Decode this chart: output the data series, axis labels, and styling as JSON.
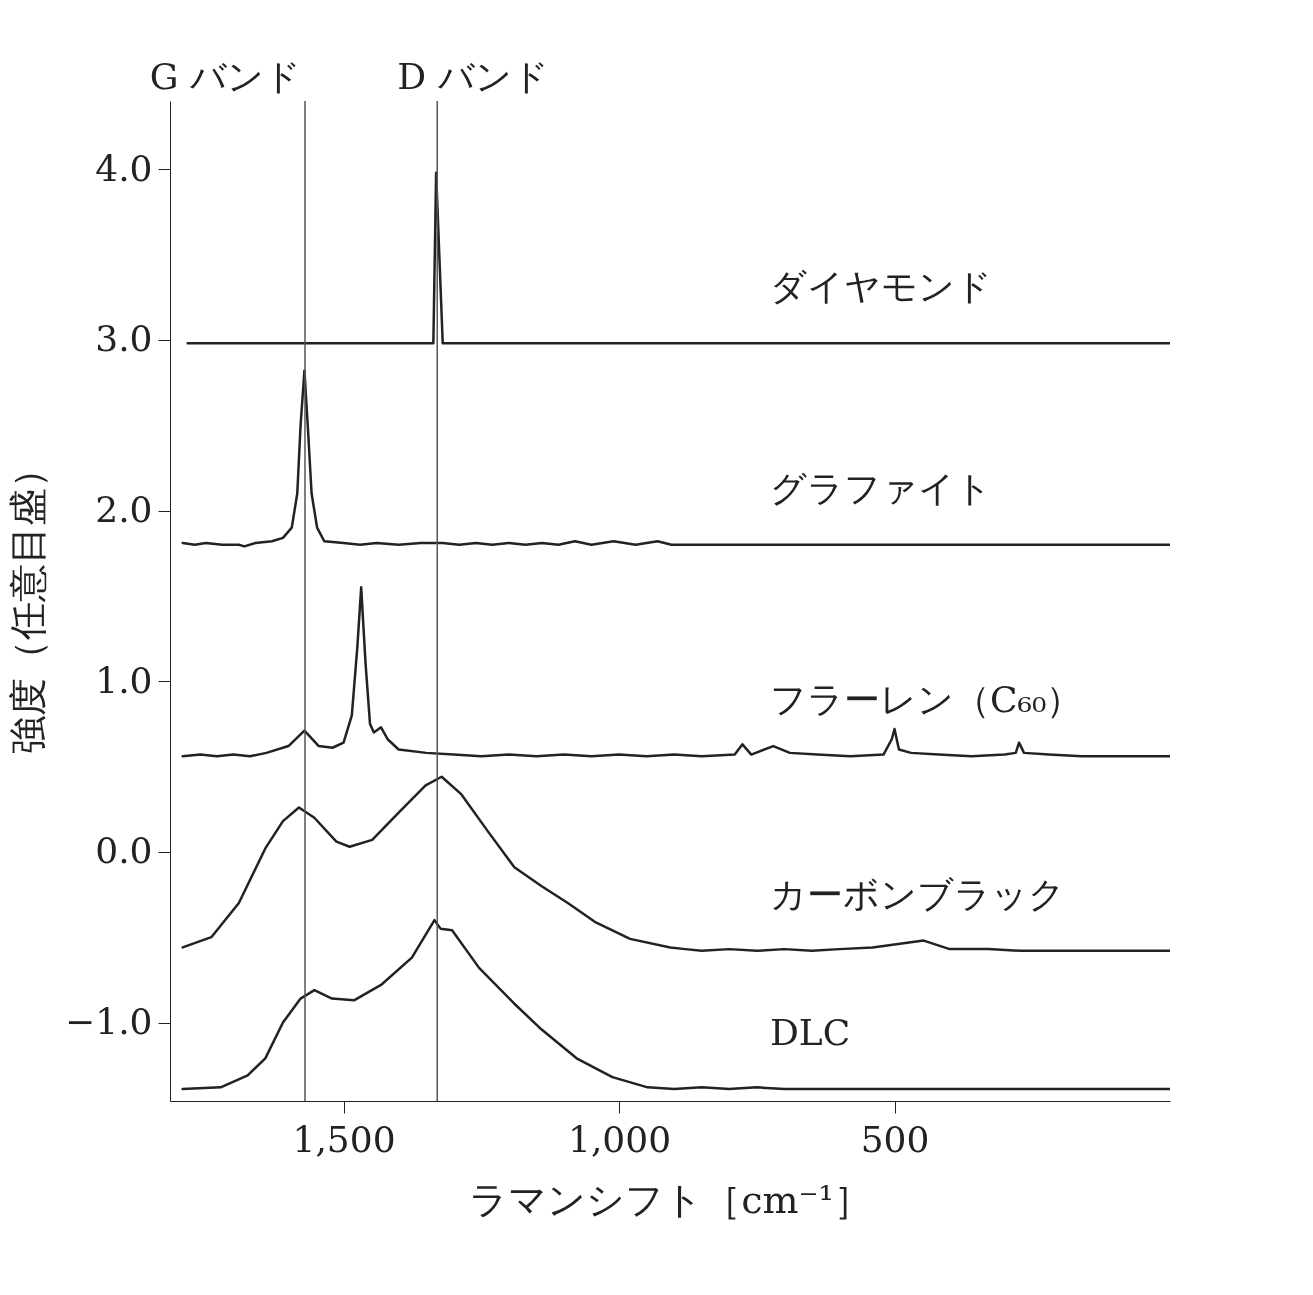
{
  "chart_data": {
    "type": "line",
    "xlabel": "ラマンシフト［cm⁻¹］",
    "ylabel": "強度（任意目盛）",
    "xlim": [
      1815,
      0
    ],
    "xticks": [
      {
        "value": 1500,
        "label": "1,500"
      },
      {
        "value": 1000,
        "label": "1,000"
      },
      500
    ],
    "ylim": [
      -1.46,
      4.4
    ],
    "yticks": [
      {
        "value": -1,
        "label": "−1.0"
      },
      {
        "value": 0,
        "label": "0.0"
      },
      {
        "value": 1,
        "label": "1.0"
      },
      {
        "value": 2,
        "label": "2.0"
      },
      {
        "value": 3,
        "label": "3.0"
      },
      {
        "value": 4,
        "label": "4.0"
      }
    ],
    "grid": false,
    "marker": "none",
    "line_style": "solid",
    "ref_lines": [
      {
        "axis": "x",
        "value": 1570,
        "label": "G バンド",
        "color": "#555555"
      },
      {
        "axis": "x",
        "value": 1330,
        "label": "D バンド",
        "color": "#555555"
      }
    ],
    "series": [
      {
        "name": "ダイヤモンド",
        "color": "#222222",
        "x": [
          1783,
          1337,
          1332,
          1320,
          0
        ],
        "values": [
          2.98,
          2.98,
          3.98,
          2.98,
          2.98
        ]
      },
      {
        "name": "グラファイト",
        "color": "#222222",
        "x": [
          1792,
          1770,
          1750,
          1720,
          1690,
          1680,
          1660,
          1630,
          1610,
          1594,
          1584,
          1578,
          1571,
          1565,
          1558,
          1548,
          1535,
          1500,
          1470,
          1440,
          1400,
          1360,
          1320,
          1290,
          1260,
          1230,
          1200,
          1170,
          1140,
          1110,
          1080,
          1050,
          1010,
          970,
          930,
          905,
          0
        ],
        "values": [
          1.81,
          1.8,
          1.81,
          1.8,
          1.8,
          1.79,
          1.81,
          1.82,
          1.84,
          1.9,
          2.1,
          2.5,
          2.82,
          2.5,
          2.1,
          1.9,
          1.82,
          1.81,
          1.8,
          1.81,
          1.8,
          1.81,
          1.81,
          1.8,
          1.81,
          1.8,
          1.81,
          1.8,
          1.81,
          1.8,
          1.82,
          1.8,
          1.82,
          1.8,
          1.82,
          1.8,
          1.8
        ]
      },
      {
        "name": "フラーレン（C₆₀）",
        "color": "#222222",
        "x": [
          1792,
          1760,
          1730,
          1700,
          1670,
          1640,
          1600,
          1571,
          1545,
          1520,
          1500,
          1485,
          1475,
          1468,
          1460,
          1452,
          1445,
          1432,
          1420,
          1400,
          1350,
          1300,
          1250,
          1200,
          1150,
          1100,
          1050,
          1000,
          950,
          900,
          850,
          790,
          776,
          760,
          720,
          690,
          640,
          580,
          520,
          505,
          500,
          492,
          470,
          420,
          360,
          300,
          280,
          274,
          265,
          220,
          160,
          0
        ],
        "values": [
          0.56,
          0.57,
          0.56,
          0.57,
          0.56,
          0.58,
          0.62,
          0.71,
          0.62,
          0.61,
          0.64,
          0.8,
          1.2,
          1.55,
          1.1,
          0.75,
          0.7,
          0.73,
          0.66,
          0.6,
          0.58,
          0.57,
          0.56,
          0.57,
          0.56,
          0.57,
          0.56,
          0.57,
          0.56,
          0.57,
          0.56,
          0.57,
          0.63,
          0.57,
          0.62,
          0.58,
          0.57,
          0.56,
          0.57,
          0.66,
          0.72,
          0.6,
          0.58,
          0.57,
          0.56,
          0.57,
          0.58,
          0.64,
          0.58,
          0.57,
          0.56,
          0.56
        ]
      },
      {
        "name": "カーボンブラック",
        "color": "#222222",
        "x": [
          1792,
          1740,
          1690,
          1642,
          1610,
          1581,
          1553,
          1513,
          1489,
          1448,
          1400,
          1351,
          1322,
          1287,
          1238,
          1190,
          1141,
          1093,
          1044,
          980,
          907,
          880,
          850,
          800,
          750,
          700,
          650,
          600,
          540,
          447,
          400,
          330,
          270,
          200,
          0
        ],
        "values": [
          -0.56,
          -0.5,
          -0.3,
          0.02,
          0.18,
          0.26,
          0.2,
          0.06,
          0.03,
          0.07,
          0.23,
          0.39,
          0.44,
          0.34,
          0.12,
          -0.09,
          -0.2,
          -0.3,
          -0.41,
          -0.51,
          -0.56,
          -0.57,
          -0.58,
          -0.57,
          -0.58,
          -0.57,
          -0.58,
          -0.57,
          -0.56,
          -0.52,
          -0.57,
          -0.57,
          -0.58,
          -0.58,
          -0.58
        ]
      },
      {
        "name": "DLC",
        "color": "#222222",
        "x": [
          1792,
          1723,
          1674,
          1642,
          1610,
          1578,
          1553,
          1521,
          1481,
          1432,
          1376,
          1335,
          1324,
          1303,
          1254,
          1190,
          1141,
          1077,
          1012,
          948,
          900,
          850,
          800,
          750,
          700,
          620,
          0
        ],
        "values": [
          -1.39,
          -1.38,
          -1.31,
          -1.21,
          -1.0,
          -0.86,
          -0.81,
          -0.86,
          -0.87,
          -0.78,
          -0.62,
          -0.4,
          -0.45,
          -0.46,
          -0.68,
          -0.89,
          -1.04,
          -1.21,
          -1.32,
          -1.38,
          -1.39,
          -1.38,
          -1.39,
          -1.38,
          -1.39,
          -1.39,
          -1.39
        ]
      }
    ]
  }
}
